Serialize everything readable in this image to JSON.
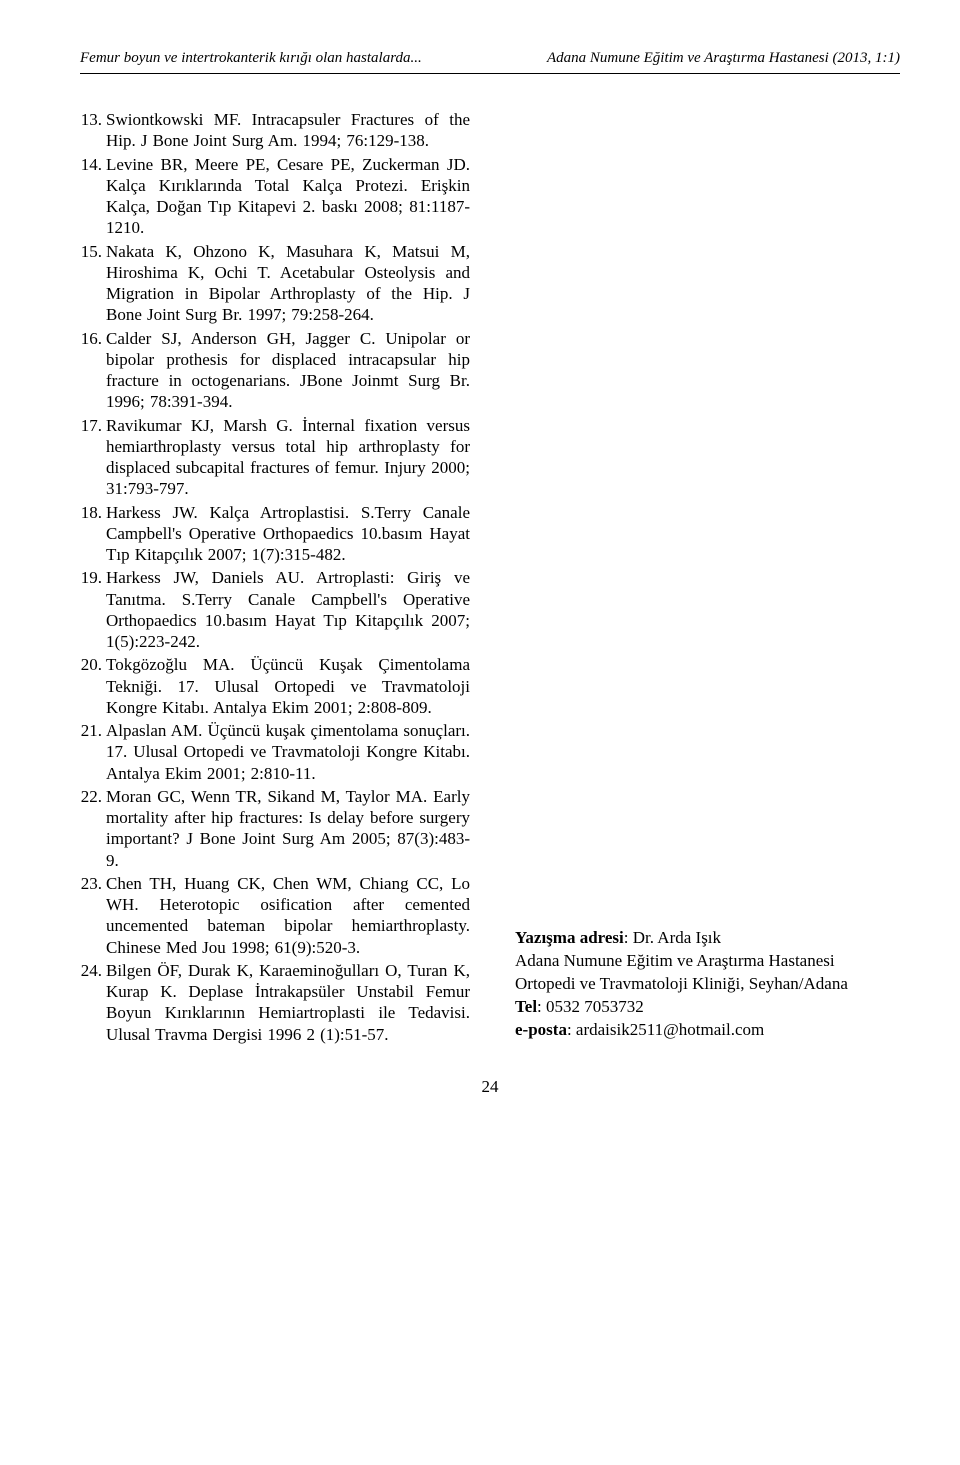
{
  "header": {
    "left": "Femur boyun ve intertrokanterik kırığı olan hastalarda...",
    "right": "Adana Numune Eğitim ve Araştırma Hastanesi (2013, 1:1)"
  },
  "references": [
    {
      "num": "13.",
      "text": "Swiontkowski MF. Intracapsuler Fractures of the Hip. J Bone Joint Surg Am. 1994; 76:129-138."
    },
    {
      "num": "14.",
      "text": "Levine BR, Meere PE, Cesare PE, Zuckerman JD. Kalça Kırıklarında Total Kalça Protezi. Erişkin Kalça, Doğan Tıp Kitapevi 2. baskı 2008; 81:1187-1210."
    },
    {
      "num": "15.",
      "text": "Nakata K, Ohzono K, Masuhara K, Matsui M, Hiroshima K, Ochi T. Acetabular Osteolysis and Migration in Bipolar Arthroplasty of the Hip. J Bone Joint Surg Br. 1997; 79:258-264."
    },
    {
      "num": "16.",
      "text": "Calder SJ, Anderson GH, Jagger C. Unipolar or bipolar prothesis for displaced intracapsular hip fracture in octogenarians. JBone Joinmt Surg Br. 1996; 78:391-394."
    },
    {
      "num": "17.",
      "text": "Ravikumar KJ, Marsh G. İnternal fixation versus hemiarthroplasty versus total hip arthroplasty for displaced subcapital fractures of femur. Injury 2000; 31:793-797."
    },
    {
      "num": "18.",
      "text": "Harkess JW. Kalça Artroplastisi. S.Terry Canale Campbell's Operative Orthopaedics 10.basım Hayat Tıp Kitapçılık 2007; 1(7):315-482."
    },
    {
      "num": "19.",
      "text": "Harkess JW, Daniels AU. Artroplasti: Giriş ve Tanıtma. S.Terry Canale Campbell's Operative Orthopaedics 10.basım Hayat Tıp Kitapçılık 2007; 1(5):223-242."
    },
    {
      "num": "20.",
      "text": "Tokgözoğlu MA. Üçüncü Kuşak Çimentolama Tekniği. 17. Ulusal Ortopedi ve Travmatoloji Kongre Kitabı. Antalya Ekim 2001; 2:808-809."
    },
    {
      "num": "21.",
      "text": "Alpaslan AM. Üçüncü kuşak çimentolama sonuçları. 17. Ulusal Ortopedi ve Travmatoloji Kongre Kitabı. Antalya Ekim 2001; 2:810-11."
    },
    {
      "num": "22.",
      "text": "Moran GC, Wenn TR, Sikand M, Taylor MA. Early mortality after hip fractures: Is delay before surgery important? J Bone Joint Surg Am 2005; 87(3):483-9."
    },
    {
      "num": "23.",
      "text": "Chen TH, Huang CK, Chen WM, Chiang CC, Lo WH. Heterotopic osification after cemented uncemented bateman bipolar hemiarthroplasty. Chinese Med Jou 1998; 61(9):520-3."
    },
    {
      "num": "24.",
      "text": "Bilgen ÖF, Durak K, Karaeminoğulları O, Turan K, Kurap K. Deplase İntrakapsüler Unstabil Femur Boyun Kırıklarının Hemiartroplasti ile Tedavisi. Ulusal Travma Dergisi 1996 2 (1):51-57."
    }
  ],
  "correspondence": {
    "address_label": "Yazışma adresi",
    "address_name": ": Dr. Arda Işık",
    "institution": "Adana Numune Eğitim ve Araştırma Hastanesi",
    "department": "Ortopedi ve Travmatoloji Kliniği, Seyhan/Adana",
    "tel_label": "Tel",
    "tel_value": ": 0532 7053732",
    "email_label": "e-posta",
    "email_value": ": ardaisik2511@hotmail.com"
  },
  "page_number": "24"
}
